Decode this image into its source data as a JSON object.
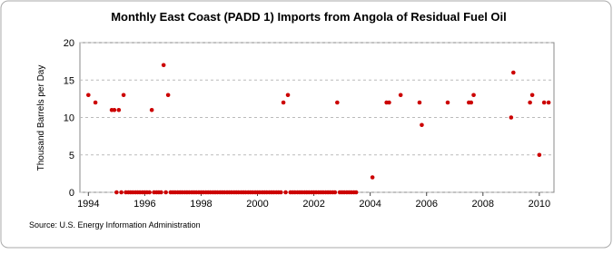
{
  "chart_data": {
    "type": "scatter",
    "title": "Monthly East Coast (PADD 1) Imports from Angola of Residual Fuel Oil",
    "y_label": "Thousand Barrels per Day",
    "source": "Source: U.S. Energy Information Administration",
    "color": "#cc0000",
    "grid": true,
    "xlim": [
      1993.7,
      2010.52
    ],
    "ylim": [
      0,
      20
    ],
    "xticks": [
      1994,
      1996,
      1998,
      2000,
      2002,
      2004,
      2006,
      2008,
      2010
    ],
    "yticks": [
      0,
      5,
      10,
      15,
      20
    ],
    "x": [
      1994,
      1994.25,
      1994.83,
      1994.92,
      1995,
      1995.08,
      1995.17,
      1995.25,
      1995.33,
      1995.42,
      1995.5,
      1995.58,
      1995.67,
      1995.75,
      1995.83,
      1995.92,
      1996,
      1996.08,
      1996.17,
      1996.25,
      1996.33,
      1996.42,
      1996.5,
      1996.58,
      1996.67,
      1996.75,
      1996.83,
      1996.92,
      1997,
      1997.08,
      1997.17,
      1997.25,
      1997.33,
      1997.42,
      1997.5,
      1997.58,
      1997.67,
      1997.75,
      1997.83,
      1997.92,
      1998,
      1998.08,
      1998.17,
      1998.25,
      1998.33,
      1998.42,
      1998.5,
      1998.58,
      1998.67,
      1998.75,
      1998.83,
      1998.92,
      1999,
      1999.08,
      1999.17,
      1999.25,
      1999.33,
      1999.42,
      1999.5,
      1999.58,
      1999.67,
      1999.75,
      1999.83,
      1999.92,
      2000,
      2000.08,
      2000.17,
      2000.25,
      2000.33,
      2000.42,
      2000.5,
      2000.58,
      2000.67,
      2000.75,
      2000.83,
      2000.92,
      2001,
      2001.08,
      2001.17,
      2001.25,
      2001.33,
      2001.42,
      2001.5,
      2001.58,
      2001.67,
      2001.75,
      2001.83,
      2001.92,
      2002,
      2002.08,
      2002.17,
      2002.25,
      2002.33,
      2002.42,
      2002.5,
      2002.58,
      2002.67,
      2002.75,
      2002.83,
      2002.92,
      2003,
      2003.08,
      2003.17,
      2003.25,
      2003.33,
      2003.42,
      2003.5,
      2004.08,
      2004.58,
      2004.67,
      2005.08,
      2005.75,
      2005.83,
      2006.75,
      2007.5,
      2007.58,
      2007.67,
      2009,
      2009.08,
      2009.67,
      2009.75,
      2010,
      2010.17,
      2010.33
    ],
    "values": [
      13,
      12,
      11,
      11,
      0,
      11,
      0,
      13,
      0,
      0,
      0,
      0,
      0,
      0,
      0,
      0,
      0,
      0,
      0,
      11,
      0,
      0,
      0,
      0,
      17,
      0,
      13,
      0,
      0,
      0,
      0,
      0,
      0,
      0,
      0,
      0,
      0,
      0,
      0,
      0,
      0,
      0,
      0,
      0,
      0,
      0,
      0,
      0,
      0,
      0,
      0,
      0,
      0,
      0,
      0,
      0,
      0,
      0,
      0,
      0,
      0,
      0,
      0,
      0,
      0,
      0,
      0,
      0,
      0,
      0,
      0,
      0,
      0,
      0,
      0,
      12,
      0,
      13,
      0,
      0,
      0,
      0,
      0,
      0,
      0,
      0,
      0,
      0,
      0,
      0,
      0,
      0,
      0,
      0,
      0,
      0,
      0,
      0,
      12,
      0,
      0,
      0,
      0,
      0,
      0,
      0,
      0,
      2,
      12,
      12,
      13,
      12,
      9,
      12,
      12,
      12,
      13,
      10,
      16,
      12,
      13,
      5,
      12,
      12
    ]
  }
}
